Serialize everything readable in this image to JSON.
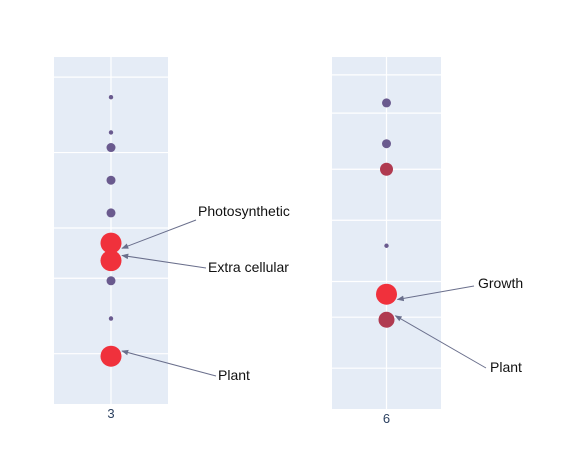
{
  "chart_data": [
    {
      "type": "scatter",
      "x_tick_labels": [
        "3"
      ],
      "background_color": "#e5ecf6",
      "grid": true,
      "marker_colors": {
        "small": "#6a5a8e",
        "highlight": "#f0313c",
        "mid": "#b03a50"
      },
      "points": [
        {
          "x": "3",
          "y": 8.6,
          "size": 1,
          "color_key": "small"
        },
        {
          "x": "3",
          "y": 7.9,
          "size": 1,
          "color_key": "small"
        },
        {
          "x": "3",
          "y": 7.6,
          "size": 2,
          "color_key": "small"
        },
        {
          "x": "3",
          "y": 6.95,
          "size": 2,
          "color_key": "small"
        },
        {
          "x": "3",
          "y": 6.3,
          "size": 2,
          "color_key": "small"
        },
        {
          "x": "3",
          "y": 5.7,
          "size": 5,
          "color_key": "highlight"
        },
        {
          "x": "3",
          "y": 5.35,
          "size": 5,
          "color_key": "highlight"
        },
        {
          "x": "3",
          "y": 4.95,
          "size": 2,
          "color_key": "small"
        },
        {
          "x": "3",
          "y": 4.2,
          "size": 1,
          "color_key": "small"
        },
        {
          "x": "3",
          "y": 3.45,
          "size": 5,
          "color_key": "highlight"
        }
      ],
      "annotations": [
        {
          "text": "Photosynthetic",
          "point_index": 5
        },
        {
          "text": "Extra cellular",
          "point_index": 6
        },
        {
          "text": "Plant",
          "point_index": 9
        }
      ]
    },
    {
      "type": "scatter",
      "x_tick_labels": [
        "6"
      ],
      "background_color": "#e5ecf6",
      "grid": true,
      "marker_colors": {
        "small": "#6a5a8e",
        "highlight": "#f0313c",
        "mid": "#b03a50"
      },
      "points": [
        {
          "x": "6",
          "y": 8.5,
          "size": 2,
          "color_key": "small"
        },
        {
          "x": "6",
          "y": 7.7,
          "size": 2,
          "color_key": "small"
        },
        {
          "x": "6",
          "y": 7.2,
          "size": 3,
          "color_key": "mid"
        },
        {
          "x": "6",
          "y": 5.7,
          "size": 1,
          "color_key": "small"
        },
        {
          "x": "6",
          "y": 4.75,
          "size": 5,
          "color_key": "highlight"
        },
        {
          "x": "6",
          "y": 4.25,
          "size": 4,
          "color_key": "mid"
        }
      ],
      "annotations": [
        {
          "text": "Growth",
          "point_index": 4
        },
        {
          "text": "Plant",
          "point_index": 5
        }
      ]
    }
  ]
}
